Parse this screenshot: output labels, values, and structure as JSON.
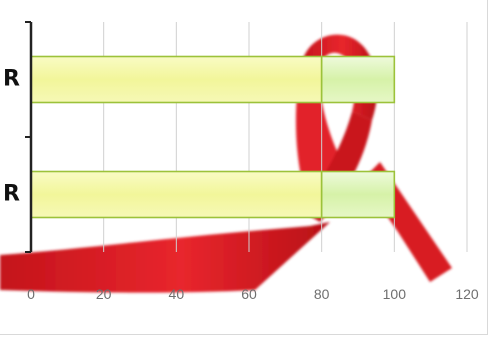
{
  "chart_data": {
    "type": "bar",
    "orientation": "horizontal",
    "stacked": true,
    "categories": [
      "R",
      "R"
    ],
    "series": [
      {
        "values": [
          80,
          80
        ],
        "color": "#f4f7a2"
      },
      {
        "values": [
          20,
          20
        ],
        "color": "#dff5b8"
      }
    ],
    "x_ticks": [
      "0",
      "20",
      "40",
      "60",
      "80",
      "100",
      "120"
    ],
    "xlim": [
      0,
      120
    ],
    "grid": true,
    "legend": "none",
    "title": "",
    "xlabel": "",
    "ylabel": "",
    "background_image": "red-ribbon",
    "colors": {
      "ribbon": "#e41f26",
      "bar_border": "#9cc23a",
      "grid": "#d0d0d0"
    }
  }
}
